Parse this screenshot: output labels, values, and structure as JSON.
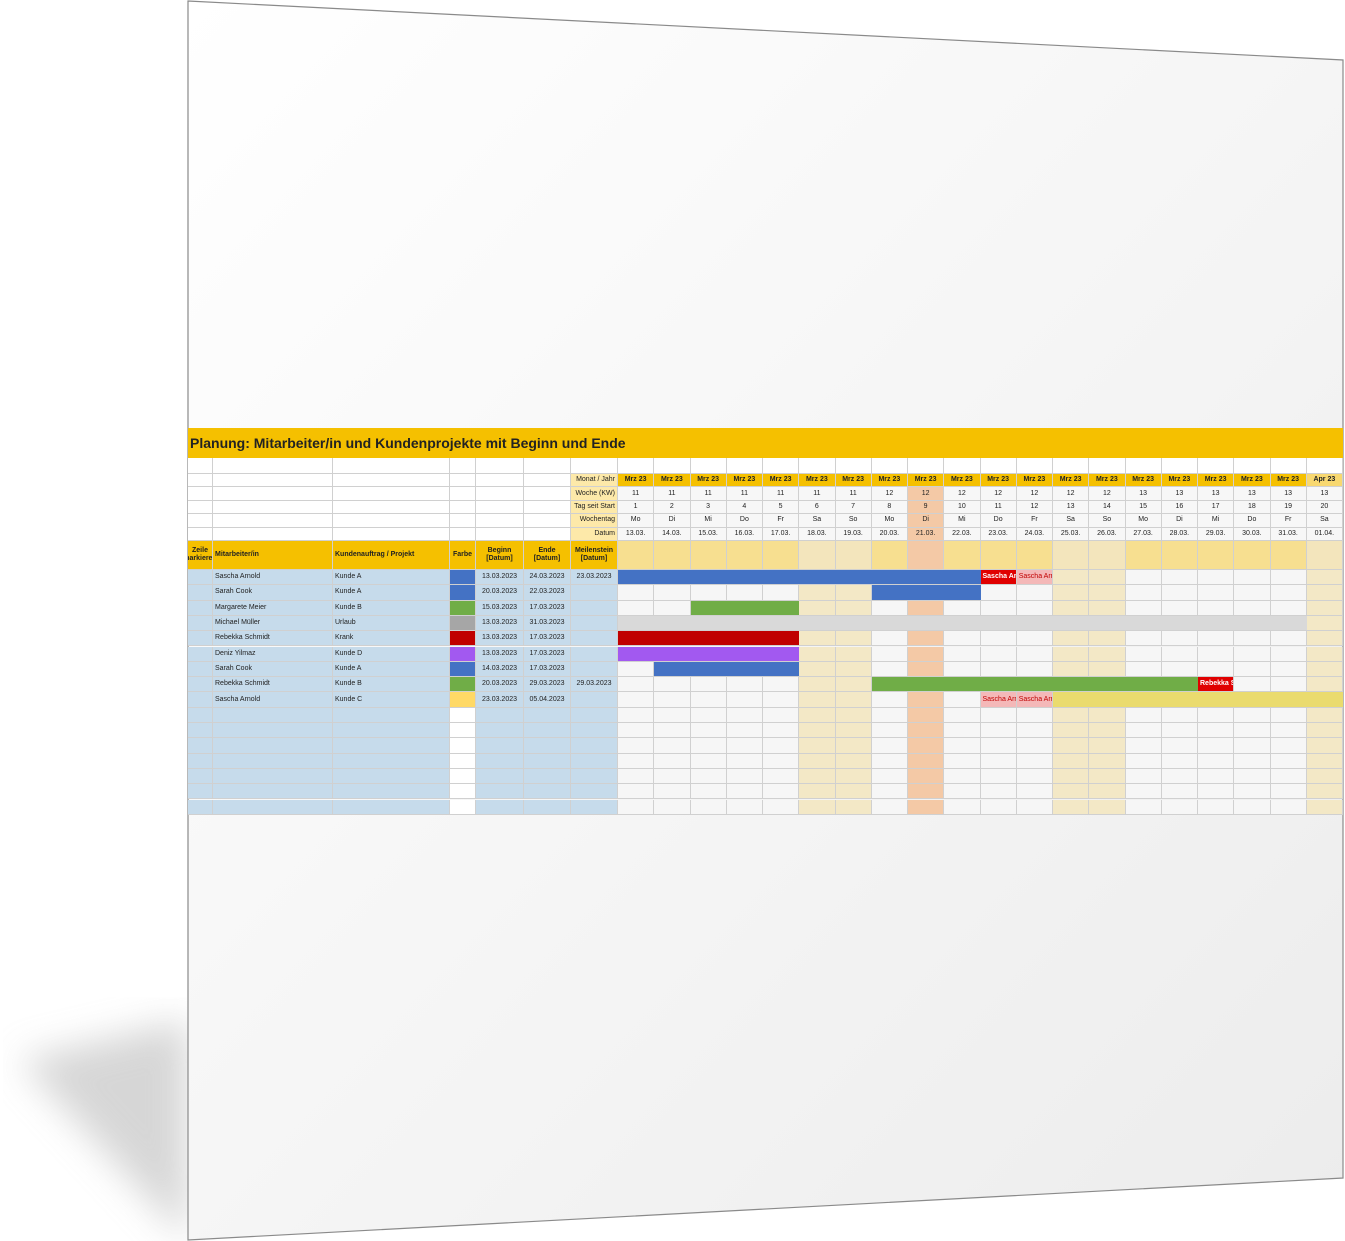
{
  "title": "Planung: Mitarbeiter/in und Kundenprojekte mit Beginn und Ende",
  "timeline_labels": [
    "Monat / Jahr",
    "Woche (KW)",
    "Tag seit Start",
    "Wochentag",
    "Datum"
  ],
  "columns_header": [
    "Zeile markieren",
    "Mitarbeiter/in",
    "Kundenauftrag / Projekt",
    "Farbe",
    "Beginn [Datum]",
    "Ende [Datum]",
    "Meilenstein [Datum]"
  ],
  "days": [
    {
      "month": "Mrz 23",
      "week": 11,
      "day": 1,
      "weekday": "Mo",
      "date": "13.03."
    },
    {
      "month": "Mrz 23",
      "week": 11,
      "day": 2,
      "weekday": "Di",
      "date": "14.03."
    },
    {
      "month": "Mrz 23",
      "week": 11,
      "day": 3,
      "weekday": "Mi",
      "date": "15.03."
    },
    {
      "month": "Mrz 23",
      "week": 11,
      "day": 4,
      "weekday": "Do",
      "date": "16.03."
    },
    {
      "month": "Mrz 23",
      "week": 11,
      "day": 5,
      "weekday": "Fr",
      "date": "17.03."
    },
    {
      "month": "Mrz 23",
      "week": 11,
      "day": 6,
      "weekday": "Sa",
      "date": "18.03.",
      "weekend": true
    },
    {
      "month": "Mrz 23",
      "week": 11,
      "day": 7,
      "weekday": "So",
      "date": "19.03.",
      "weekend": true
    },
    {
      "month": "Mrz 23",
      "week": 12,
      "day": 8,
      "weekday": "Mo",
      "date": "20.03."
    },
    {
      "month": "Mrz 23",
      "week": 12,
      "day": 9,
      "weekday": "Di",
      "date": "21.03.",
      "today": true
    },
    {
      "month": "Mrz 23",
      "week": 12,
      "day": 10,
      "weekday": "Mi",
      "date": "22.03."
    },
    {
      "month": "Mrz 23",
      "week": 12,
      "day": 11,
      "weekday": "Do",
      "date": "23.03."
    },
    {
      "month": "Mrz 23",
      "week": 12,
      "day": 12,
      "weekday": "Fr",
      "date": "24.03."
    },
    {
      "month": "Mrz 23",
      "week": 12,
      "day": 13,
      "weekday": "Sa",
      "date": "25.03.",
      "weekend": true
    },
    {
      "month": "Mrz 23",
      "week": 12,
      "day": 14,
      "weekday": "So",
      "date": "26.03.",
      "weekend": true
    },
    {
      "month": "Mrz 23",
      "week": 13,
      "day": 15,
      "weekday": "Mo",
      "date": "27.03."
    },
    {
      "month": "Mrz 23",
      "week": 13,
      "day": 16,
      "weekday": "Di",
      "date": "28.03."
    },
    {
      "month": "Mrz 23",
      "week": 13,
      "day": 17,
      "weekday": "Mi",
      "date": "29.03."
    },
    {
      "month": "Mrz 23",
      "week": 13,
      "day": 18,
      "weekday": "Do",
      "date": "30.03."
    },
    {
      "month": "Mrz 23",
      "week": 13,
      "day": 19,
      "weekday": "Fr",
      "date": "31.03."
    },
    {
      "month": "Apr 23",
      "week": 13,
      "day": 20,
      "weekday": "Sa",
      "date": "01.04.",
      "weekend": true
    }
  ],
  "note_styles": {
    "milestone": {
      "bg": "#e00000",
      "fg": "#ffffff"
    },
    "reminder": {
      "bg": "#f4b8b8",
      "fg": "#c00000"
    }
  },
  "rows": [
    {
      "name": "Sascha Arnold",
      "project": "Kunde A",
      "color": "#4472c4",
      "bar_color": "#4472c4",
      "begin": "13.03.2023",
      "end": "24.03.2023",
      "milestone": "23.03.2023",
      "notes": [
        {
          "date": "23.03.",
          "text": "Sascha Arnold",
          "style": "milestone"
        },
        {
          "date": "24.03.",
          "text": "Sascha Arnold",
          "style": "reminder"
        }
      ]
    },
    {
      "name": "Sarah Cook",
      "project": "Kunde A",
      "color": "#4472c4",
      "bar_color": "#4472c4",
      "begin": "20.03.2023",
      "end": "22.03.2023"
    },
    {
      "name": "Margarete Meier",
      "project": "Kunde B",
      "color": "#70ad47",
      "bar_color": "#70ad47",
      "begin": "15.03.2023",
      "end": "17.03.2023"
    },
    {
      "name": "Michael Müller",
      "project": "Urlaub",
      "color": "#a6a6a6",
      "bar_color": "#d9d9d9",
      "begin": "13.03.2023",
      "end": "31.03.2023"
    },
    {
      "name": "Rebekka Schmidt",
      "project": "Krank",
      "color": "#c00000",
      "bar_color": "#c00000",
      "begin": "13.03.2023",
      "end": "17.03.2023"
    },
    {
      "name": "Deniz Yilmaz",
      "project": "Kunde D",
      "color": "#a259f0",
      "bar_color": "#a259f0",
      "begin": "13.03.2023",
      "end": "17.03.2023"
    },
    {
      "name": "Sarah Cook",
      "project": "Kunde A",
      "color": "#4472c4",
      "bar_color": "#4472c4",
      "begin": "14.03.2023",
      "end": "17.03.2023"
    },
    {
      "name": "Rebekka Schmidt",
      "project": "Kunde B",
      "color": "#70ad47",
      "bar_color": "#70ad47",
      "begin": "20.03.2023",
      "end": "29.03.2023",
      "milestone": "29.03.2023",
      "notes": [
        {
          "date": "29.03.",
          "text": "Rebekka Schmidt",
          "style": "milestone"
        }
      ]
    },
    {
      "name": "Sascha Arnold",
      "project": "Kunde C",
      "color": "#ffd966",
      "bar_color": "#eadb6e",
      "begin": "23.03.2023",
      "end": "05.04.2023",
      "notes": [
        {
          "date": "23.03.",
          "text": "Sascha Arnold",
          "style": "reminder"
        },
        {
          "date": "24.03.",
          "text": "Sascha Arnold",
          "style": "reminder"
        }
      ]
    }
  ]
}
